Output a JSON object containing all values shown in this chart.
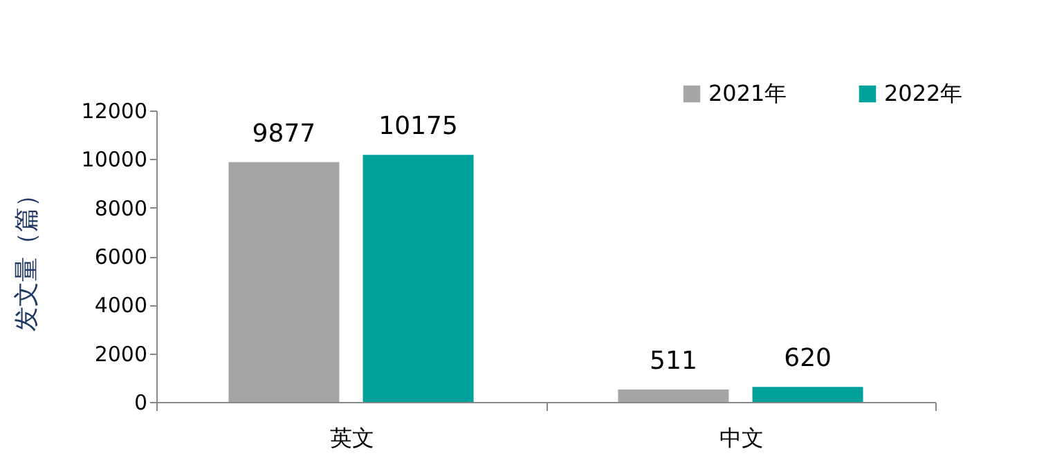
{
  "chart_data": {
    "type": "bar",
    "ylabel": "发文量（篇）",
    "categories": [
      "英文",
      "中文"
    ],
    "series": [
      {
        "name": "2021年",
        "color": "#a5a5a5",
        "values": [
          9877,
          511
        ]
      },
      {
        "name": "2022年",
        "color": "#00a19b",
        "values": [
          10175,
          620
        ]
      }
    ],
    "ylim": [
      0,
      12000
    ],
    "yticks": [
      0,
      2000,
      4000,
      6000,
      8000,
      10000,
      12000
    ],
    "grid": false,
    "legend": "top right",
    "data_labels": true
  }
}
